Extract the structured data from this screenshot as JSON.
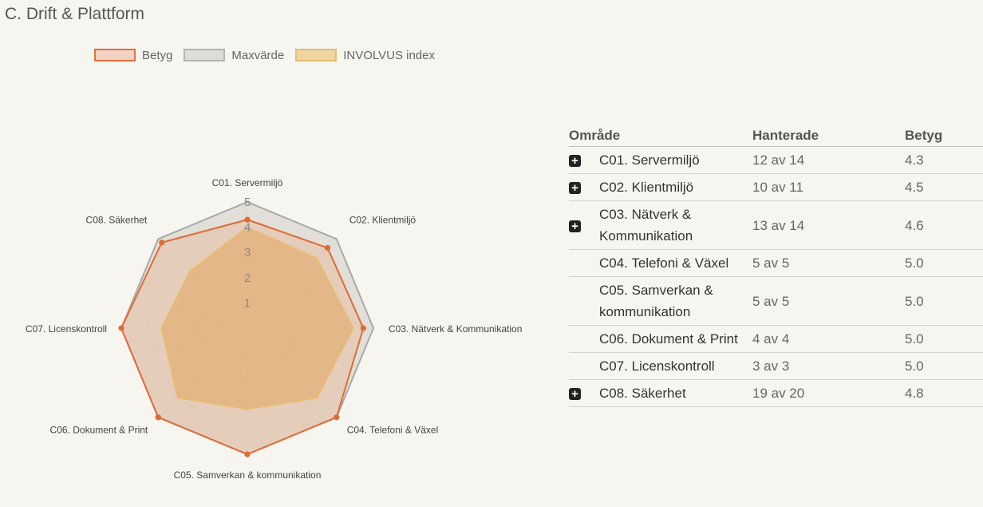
{
  "page": {
    "title": "C. Drift & Plattform"
  },
  "legend": [
    {
      "label": "Betyg",
      "fill": "#f3d3c4",
      "stroke": "#e07040"
    },
    {
      "label": "Maxvärde",
      "fill": "#dddcd6",
      "stroke": "#b5b5b5"
    },
    {
      "label": "INVOLVUS index",
      "fill": "#f0d4a2",
      "stroke": "#e5bd70"
    }
  ],
  "chart_data": {
    "type": "radar",
    "axes": [
      "C01. Servermiljö",
      "C02. Klientmiljö",
      "C03. Nätverk & Kommunikation",
      "C04. Telefoni & Växel",
      "C05. Samverkan & kommunikation",
      "C06. Dokument & Print",
      "C07. Licenskontroll",
      "C08. Säkerhet"
    ],
    "rmax": 5,
    "ticks": [
      "1",
      "2",
      "3",
      "4",
      "5"
    ],
    "series": [
      {
        "name": "Maxvärde",
        "values": [
          5,
          5,
          5,
          5,
          5,
          5,
          5,
          5
        ],
        "fill": "#d9d7cf",
        "stroke": "#a9a9a9",
        "fill_opacity": 0.75
      },
      {
        "name": "Betyg",
        "values": [
          4.3,
          4.5,
          4.6,
          5.0,
          5.0,
          5.0,
          5.0,
          4.8
        ],
        "fill": "#e8b89a",
        "stroke": "#e06a35",
        "fill_opacity": 0.45,
        "markers": true
      },
      {
        "name": "INVOLVUS index",
        "values": [
          4.0,
          3.9,
          4.2,
          3.9,
          3.2,
          3.9,
          3.4,
          3.2
        ],
        "fill": "#e3a866",
        "stroke": "#e8bb70",
        "fill_opacity": 0.6
      }
    ]
  },
  "table": {
    "headers": {
      "area": "Område",
      "handled": "Hanterade",
      "score": "Betyg"
    },
    "expand_icon": "plus-square-icon",
    "rows": [
      {
        "expand": true,
        "area": "C01. Servermiljö",
        "handled": "12 av 14",
        "score": "4.3"
      },
      {
        "expand": true,
        "area": "C02. Klientmiljö",
        "handled": "10 av 11",
        "score": "4.5"
      },
      {
        "expand": true,
        "area": "C03. Nätverk & Kommunikation",
        "handled": "13 av 14",
        "score": "4.6"
      },
      {
        "expand": false,
        "area": "C04. Telefoni & Växel",
        "handled": "5 av 5",
        "score": "5.0"
      },
      {
        "expand": false,
        "area": "C05. Samverkan & kommunikation",
        "handled": "5 av 5",
        "score": "5.0"
      },
      {
        "expand": false,
        "area": "C06. Dokument & Print",
        "handled": "4 av 4",
        "score": "5.0"
      },
      {
        "expand": false,
        "area": "C07. Licenskontroll",
        "handled": "3 av 3",
        "score": "5.0"
      },
      {
        "expand": true,
        "area": "C08. Säkerhet",
        "handled": "19 av 20",
        "score": "4.8"
      }
    ]
  }
}
